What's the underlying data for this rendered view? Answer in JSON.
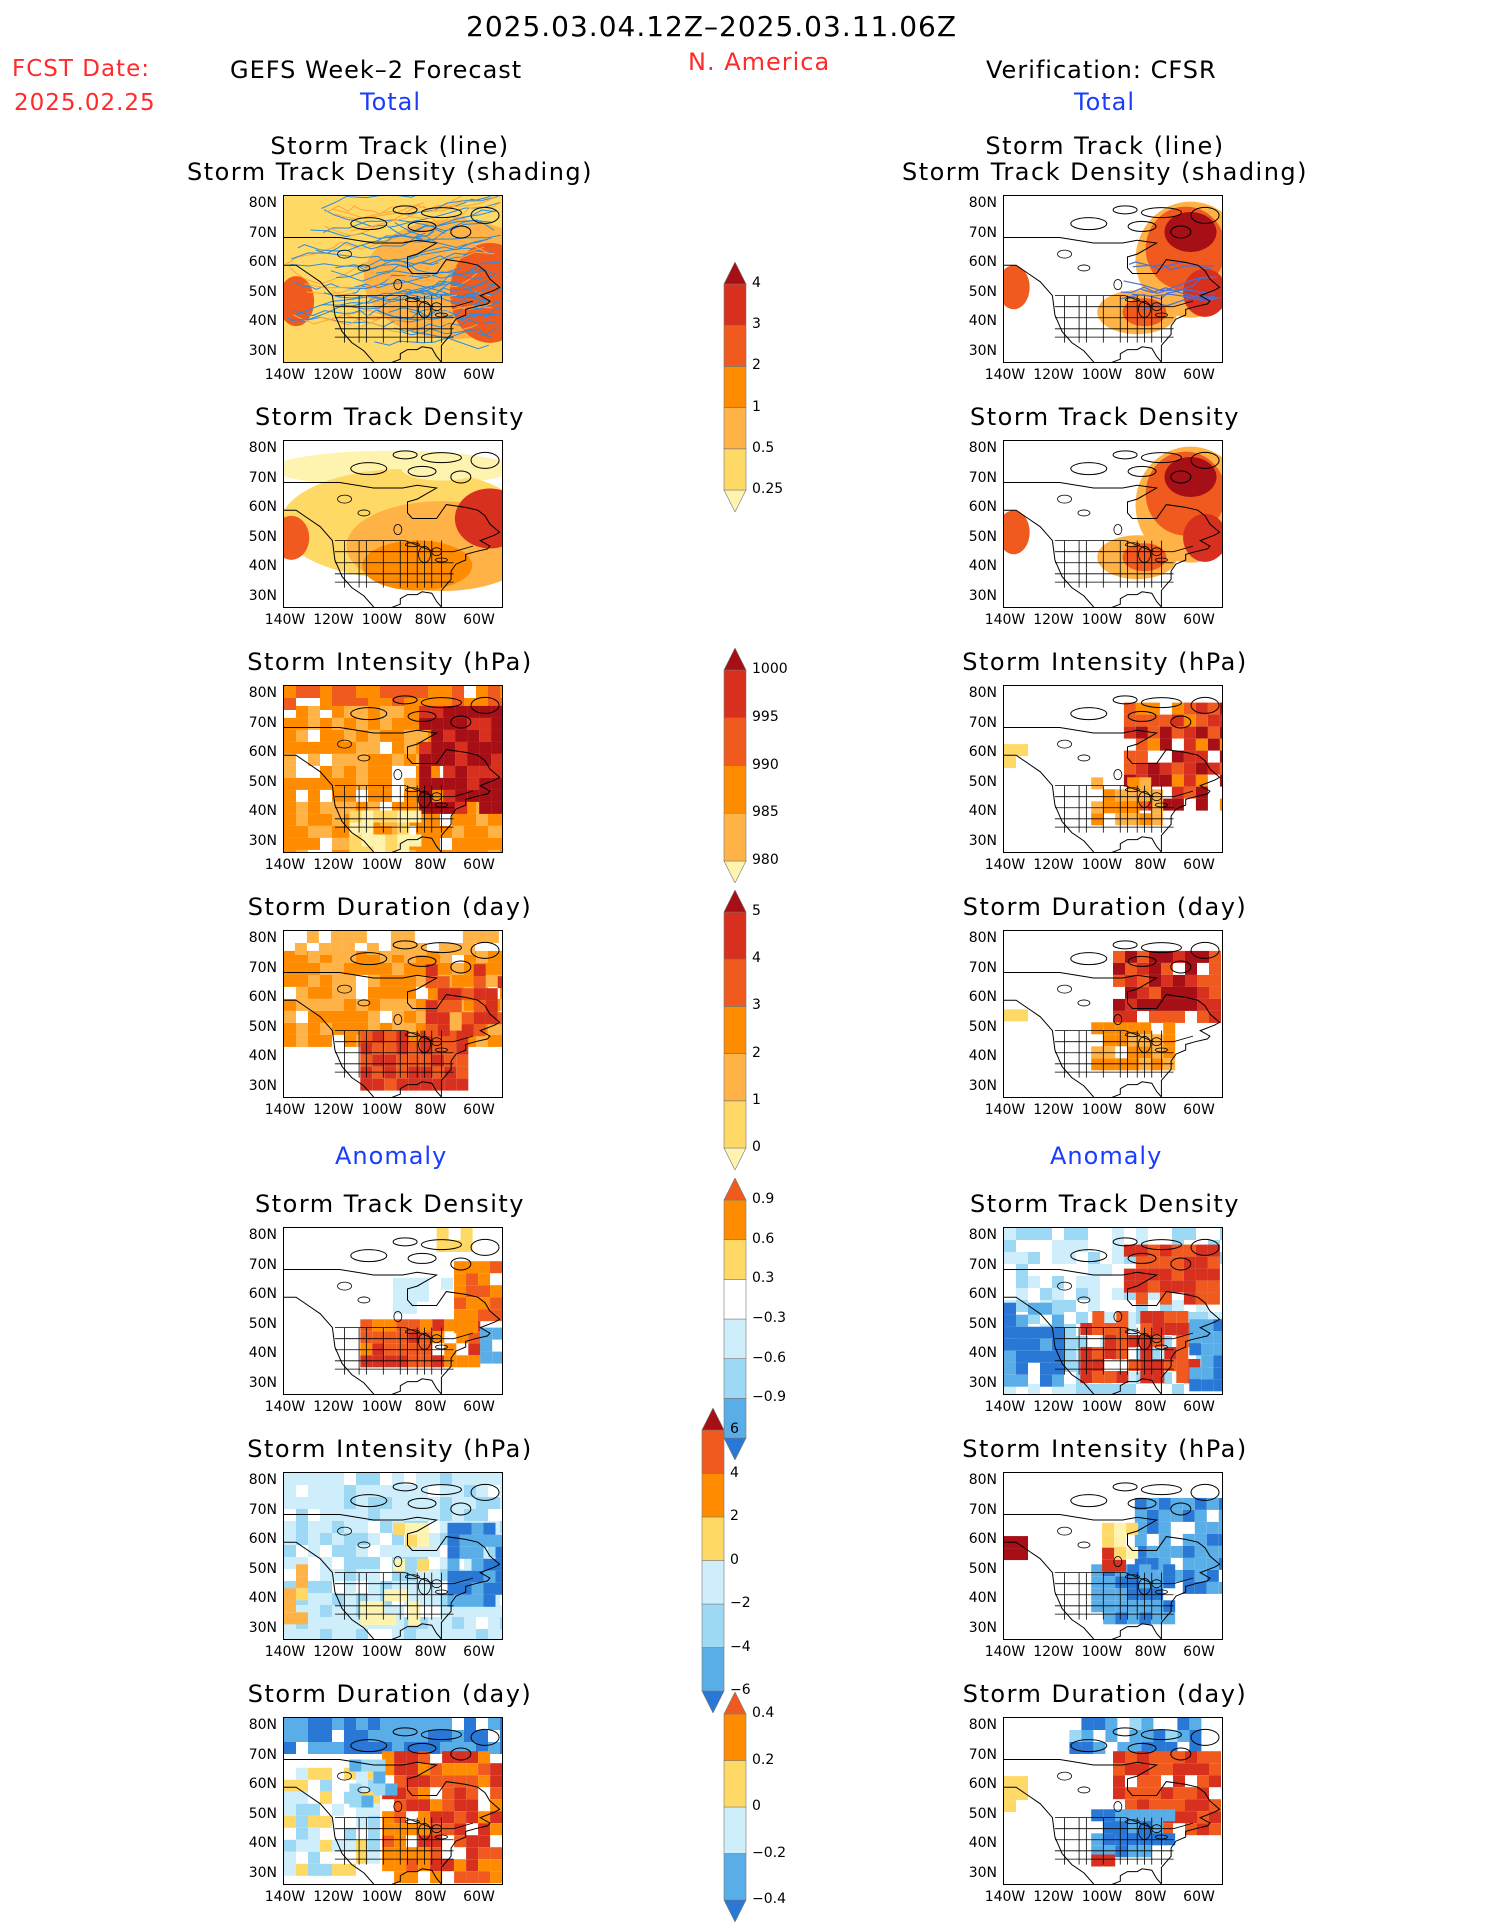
{
  "header": {
    "period": "2025.03.04.12Z–2025.03.11.06Z",
    "fcst_label": "FCST Date:",
    "fcst_date": "2025.02.25",
    "left_title": "GEFS Week–2 Forecast",
    "region": "N. America",
    "right_title": "Verification: CFSR",
    "total_label": "Total",
    "anomaly_label": "Anomaly"
  },
  "panel_titles": {
    "track_line": "Storm Track (line)",
    "track_shade": "Storm Track Density (shading)",
    "density": "Storm Track Density",
    "intensity": "Storm Intensity (hPa)",
    "duration": "Storm Duration (day)"
  },
  "axes": {
    "lat_ticks": [
      "80N",
      "70N",
      "60N",
      "50N",
      "40N",
      "30N"
    ],
    "lon_ticks": [
      "140W",
      "120W",
      "100W",
      "80W",
      "60W"
    ]
  },
  "colorbars": {
    "density_total": [
      "4",
      "3",
      "2",
      "1",
      "0.5",
      "0.25"
    ],
    "intensity_total": [
      "1000",
      "995",
      "990",
      "985",
      "980"
    ],
    "duration_total": [
      "5",
      "4",
      "3",
      "2",
      "1",
      "0"
    ],
    "density_anom": [
      "0.9",
      "0.6",
      "0.3",
      "−0.3",
      "−0.6",
      "−0.9"
    ],
    "intensity_anom": [
      "6",
      "4",
      "2",
      "0",
      "−2",
      "−4",
      "−6"
    ],
    "duration_anom": [
      "0.4",
      "0.2",
      "0",
      "−0.2",
      "−0.4"
    ]
  },
  "colors": {
    "title_red": "#ff2a2a",
    "title_blue": "#1a3cff",
    "warm": [
      "#fff3b0",
      "#ffd966",
      "#ffb347",
      "#ff8c00",
      "#f05a1e",
      "#d7301f",
      "#a50f15"
    ],
    "cool": [
      "#cdeefa",
      "#9dd9f5",
      "#5aaee8",
      "#2a78d6"
    ],
    "track_blue": "#2a8ce0",
    "track_orange": "#ffa53a"
  }
}
